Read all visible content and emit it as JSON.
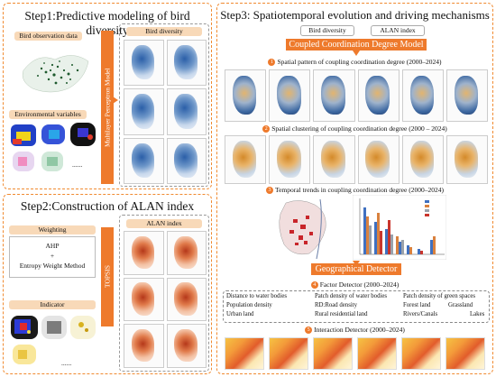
{
  "step1": {
    "title": "Step1:Predictive modeling of bird diversity",
    "bird_obs_label": "Bird observation data",
    "env_label": "Environmental variables",
    "ellipsis": "......",
    "model_label": "Multilayer Perceptron Model",
    "output_label": "Bird diversity"
  },
  "step2": {
    "title": "Step2:Construction of ALAN index",
    "weighting_label": "Weighting",
    "method_line1": "AHP",
    "method_plus": "+",
    "method_line2": "Entropy Weight Method",
    "indicator_label": "Indicator",
    "ellipsis": "......",
    "topsis_label": "TOPSIS",
    "output_label": "ALAN index"
  },
  "step3": {
    "title": "Step3: Spatiotemporal evolution and driving mechanisms",
    "input_a": "Bird diversity",
    "input_b": "ALAN index",
    "model_label": "Coupled Coordination Degree Model",
    "sub1_num": "1",
    "sub1": "Spatial pattern of coupling coordination degree (2000–2024)",
    "sub2_num": "2",
    "sub2": "Spatial clustering of coupling coordination degree (2000 – 2024)",
    "sub3_num": "3",
    "sub3": "Temporal trends in coupling coordination degree (2000–2024)",
    "detector_label": "Geographical Detector",
    "sub4_num": "4",
    "sub4": "Factor Detector (2000–2024)",
    "factors": [
      "Distance to water bodies",
      "Patch density of water bodies",
      "Patch density of green spaces",
      "Population density",
      "RD:Road density",
      "Forest land",
      "Grassland",
      "Urban land",
      "Rural residential land",
      "Rivers/Canals",
      "Lakes"
    ],
    "sub5_num": "5",
    "sub5": "Interaction Detector (2000–2024)"
  },
  "colors": {
    "accent": "#ee7a2c",
    "tag_bg": "#f8d9b8",
    "panel_border": "#f08a30"
  }
}
